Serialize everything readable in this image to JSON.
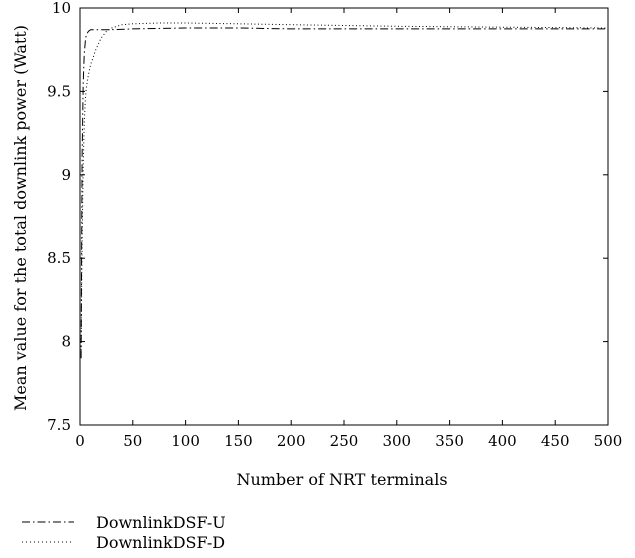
{
  "chart_data": {
    "type": "line",
    "title": "",
    "xlabel": "Number of NRT terminals",
    "ylabel": "Mean value for the total downlink power (Watt)",
    "xlim": [
      0,
      500
    ],
    "ylim": [
      7.5,
      10
    ],
    "xticks": [
      0,
      50,
      100,
      150,
      200,
      250,
      300,
      350,
      400,
      450,
      500
    ],
    "yticks": [
      7.5,
      8,
      8.5,
      9,
      9.5,
      10
    ],
    "xtick_labels": [
      "0",
      "50",
      "100",
      "150",
      "200",
      "250",
      "300",
      "350",
      "400",
      "450",
      "500"
    ],
    "ytick_labels": [
      "7.5",
      "8",
      "8.5",
      "9",
      "9.5",
      "10"
    ],
    "grid": false,
    "legend_position": "below-left",
    "series": [
      {
        "name": "DownlinkDSF-U",
        "line_style": "dash-dot",
        "color": "#000000",
        "x": [
          1,
          2,
          3,
          4,
          5,
          6,
          8,
          10,
          15,
          20,
          30,
          50,
          100,
          150,
          200,
          300,
          400,
          500
        ],
        "y": [
          7.9,
          9.1,
          9.55,
          9.72,
          9.8,
          9.84,
          9.86,
          9.87,
          9.87,
          9.87,
          9.87,
          9.875,
          9.88,
          9.88,
          9.875,
          9.875,
          9.875,
          9.875
        ]
      },
      {
        "name": "DownlinkDSF-D",
        "line_style": "dotted",
        "color": "#000000",
        "x": [
          1,
          2,
          3,
          4,
          5,
          6,
          8,
          10,
          15,
          20,
          25,
          30,
          40,
          50,
          75,
          100,
          150,
          200,
          300,
          400,
          500
        ],
        "y": [
          7.95,
          8.6,
          9.05,
          9.3,
          9.45,
          9.52,
          9.6,
          9.66,
          9.75,
          9.82,
          9.86,
          9.88,
          9.9,
          9.905,
          9.91,
          9.91,
          9.905,
          9.9,
          9.89,
          9.885,
          9.88
        ]
      }
    ]
  }
}
